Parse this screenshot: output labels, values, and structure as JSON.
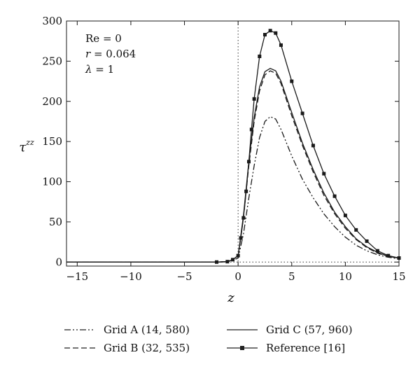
{
  "chart_data": {
    "type": "line",
    "xlabel": "z",
    "ylabel": "τ",
    "ylabel_sup": "zz",
    "xlim": [
      -16,
      15
    ],
    "ylim": [
      -5,
      300
    ],
    "x_ticks": [
      -15,
      -10,
      -5,
      0,
      5,
      10,
      15
    ],
    "y_ticks": [
      0,
      50,
      100,
      150,
      200,
      250,
      300
    ],
    "x_tick_labels": [
      "−15",
      "−10",
      "−5",
      "0",
      "5",
      "10",
      "15"
    ],
    "y_tick_labels": [
      "0",
      "50",
      "100",
      "150",
      "200",
      "250",
      "300"
    ],
    "vertical_reference_line": 0,
    "horizontal_reference_line": 0,
    "grid": false,
    "annotations": {
      "re": "Re = 0",
      "r_symbol": "r",
      "r_value": " = 0.064",
      "lambda_symbol": "λ",
      "lambda_value": " = 1"
    },
    "legend_position": "bottom",
    "series": [
      {
        "name": "Grid A (14, 580)",
        "style": "dash-dot-dot",
        "x": [
          -16,
          -2,
          -1,
          -0.5,
          0,
          0.5,
          1,
          1.5,
          2,
          2.5,
          3,
          3.5,
          4,
          5,
          6,
          7,
          8,
          9,
          10,
          11,
          12,
          13,
          14,
          15
        ],
        "y": [
          0,
          0,
          0.5,
          2,
          5,
          35,
          80,
          120,
          155,
          175,
          181,
          178,
          165,
          132,
          103,
          80,
          60,
          44,
          31,
          21,
          14,
          9,
          6,
          4
        ]
      },
      {
        "name": "Grid B (32, 535)",
        "style": "dashed",
        "x": [
          -16,
          -2,
          -1,
          -0.5,
          0,
          0.5,
          1,
          1.5,
          2,
          2.5,
          3,
          3.5,
          4,
          5,
          6,
          7,
          8,
          9,
          10,
          11,
          12,
          13,
          14,
          15
        ],
        "y": [
          0,
          0,
          0.5,
          3,
          8,
          55,
          120,
          175,
          213,
          233,
          238,
          235,
          222,
          182,
          145,
          112,
          83,
          60,
          42,
          28,
          18,
          11,
          7,
          5
        ]
      },
      {
        "name": "Grid C (57, 960)",
        "style": "solid",
        "x": [
          -16,
          -2,
          -1,
          -0.5,
          0,
          0.5,
          1,
          1.5,
          2,
          2.5,
          3,
          3.5,
          4,
          5,
          6,
          7,
          8,
          9,
          10,
          11,
          12,
          13,
          14,
          15
        ],
        "y": [
          0,
          0,
          0.5,
          3,
          8,
          58,
          125,
          180,
          218,
          237,
          241,
          238,
          225,
          186,
          148,
          115,
          86,
          62,
          44,
          29,
          19,
          12,
          7,
          5
        ]
      },
      {
        "name": "Reference [16]",
        "style": "solid-square-markers",
        "x": [
          -16,
          -2,
          -1,
          -0.5,
          0,
          0.25,
          0.5,
          0.75,
          1,
          1.25,
          1.5,
          2,
          2.5,
          3,
          3.5,
          4,
          5,
          6,
          7,
          8,
          9,
          10,
          11,
          12,
          13,
          14,
          15
        ],
        "y": [
          0,
          0,
          0.5,
          3,
          8,
          30,
          55,
          88,
          125,
          165,
          203,
          256,
          283,
          288,
          285,
          270,
          225,
          185,
          145,
          110,
          82,
          58,
          40,
          26,
          14,
          8,
          5
        ]
      }
    ]
  }
}
